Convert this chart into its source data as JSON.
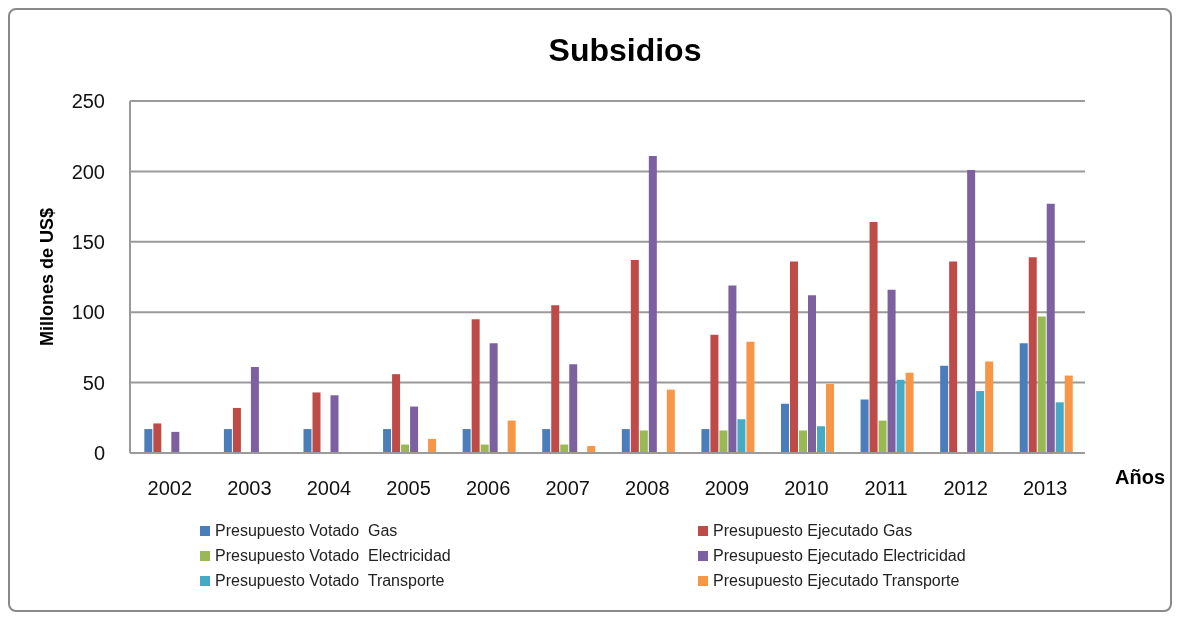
{
  "chart_data": {
    "type": "bar",
    "title": "Subsidios",
    "xlabel": "Años",
    "ylabel": "Millones de US$",
    "categories": [
      "2002",
      "2003",
      "2004",
      "2005",
      "2006",
      "2007",
      "2008",
      "2009",
      "2010",
      "2011",
      "2012",
      "2013"
    ],
    "series": [
      {
        "name": "Presupuesto Votado  Gas",
        "color": "#4a7ebb",
        "values": [
          17,
          17,
          17,
          17,
          17,
          17,
          17,
          17,
          35,
          38,
          62,
          78
        ]
      },
      {
        "name": "Presupuesto Ejecutado Gas",
        "color": "#be4b48",
        "values": [
          21,
          32,
          43,
          56,
          95,
          105,
          137,
          84,
          136,
          164,
          136,
          139
        ]
      },
      {
        "name": "Presupuesto Votado  Electricidad",
        "color": "#98b954",
        "values": [
          0,
          0,
          0,
          6,
          6,
          6,
          16,
          16,
          16,
          23,
          0,
          97
        ]
      },
      {
        "name": "Presupuesto Ejecutado Electricidad",
        "color": "#7d60a0",
        "values": [
          15,
          61,
          41,
          33,
          78,
          63,
          211,
          119,
          112,
          116,
          201,
          177
        ]
      },
      {
        "name": "Presupuesto Votado  Transporte",
        "color": "#46aac5",
        "values": [
          0,
          0,
          0,
          0,
          0,
          0,
          0,
          24,
          19,
          52,
          44,
          36
        ]
      },
      {
        "name": "Presupuesto Ejecutado Transporte",
        "color": "#f79646",
        "values": [
          0,
          0,
          0,
          10,
          23,
          5,
          45,
          79,
          49,
          57,
          65,
          55
        ]
      }
    ],
    "ylim": [
      0,
      250
    ],
    "yticks": [
      0,
      50,
      100,
      150,
      200,
      250
    ],
    "grid": "y",
    "legend": "bottom"
  }
}
